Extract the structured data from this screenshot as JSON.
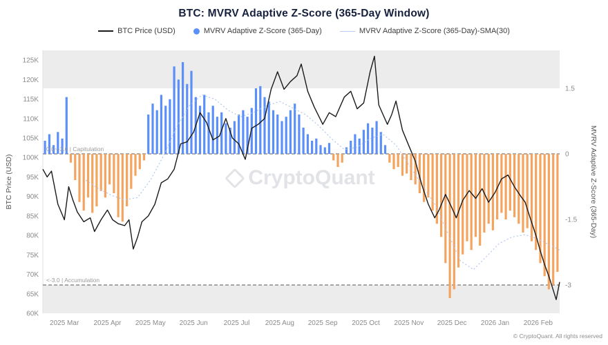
{
  "title": "BTC: MVRV Adaptive Z-Score (365-Day Window)",
  "legend": [
    {
      "label": "BTC Price (USD)",
      "swatch": "line-swatch-icon",
      "color": "#1a1a1a"
    },
    {
      "label": "MVRV Adaptive Z-Score (365-Day)",
      "swatch": "dot-swatch-icon",
      "color": "#5b8ff9"
    },
    {
      "label": "MVRV Adaptive Z-Score (365-Day)-SMA(30)",
      "swatch": "thin-line-swatch-icon",
      "color": "#b9cdf2"
    }
  ],
  "annotations": {
    "capitulation": "0.0~-3.0 | Capitulation",
    "accumulation": "<-3.0 | Accumulation"
  },
  "watermark": "CryptoQuant",
  "copyright": "© CryptoQuant. All rights reserved",
  "colors": {
    "bar_positive": "#5b8ff9",
    "bar_negative": "#f4a45e",
    "price_line": "#1a1a1a",
    "sma_line": "#aec6f0",
    "band": "#ececec",
    "ref_line": "#555555"
  },
  "chart_data": {
    "type": "mixed",
    "x_domain": [
      0,
      12
    ],
    "x_ticks": [
      {
        "t": 0.5,
        "label": "2025 Mar"
      },
      {
        "t": 1.5,
        "label": "2025 Apr"
      },
      {
        "t": 2.5,
        "label": "2025 May"
      },
      {
        "t": 3.5,
        "label": "2025 Jun"
      },
      {
        "t": 4.5,
        "label": "2025 Jul"
      },
      {
        "t": 5.5,
        "label": "2025 Aug"
      },
      {
        "t": 6.5,
        "label": "2025 Sep"
      },
      {
        "t": 7.5,
        "label": "2025 Oct"
      },
      {
        "t": 8.5,
        "label": "2025 Nov"
      },
      {
        "t": 9.5,
        "label": "2025 Dec"
      },
      {
        "t": 10.5,
        "label": "2026 Jan"
      },
      {
        "t": 11.5,
        "label": "2026 Feb"
      }
    ],
    "price_axis": {
      "label": "BTC Price (USD)",
      "unit": "K",
      "min": 60,
      "max": 127.5,
      "ticks": [
        60,
        65,
        70,
        75,
        80,
        85,
        90,
        95,
        100,
        105,
        110,
        115,
        120,
        125
      ]
    },
    "z_axis": {
      "label": "MVRV Adaptive Z-Score (365-Day)",
      "ticks": [
        1.5,
        0,
        -1.5,
        -3
      ],
      "band_top": 1.5,
      "capitulation_level": 0,
      "accumulation_level": -3
    },
    "series": [
      {
        "name": "BTC Price (USD)",
        "type": "line",
        "axis": "price",
        "color": "#1a1a1a",
        "points": [
          [
            0,
            97
          ],
          [
            0.1,
            95
          ],
          [
            0.2,
            96.5
          ],
          [
            0.35,
            88
          ],
          [
            0.5,
            84
          ],
          [
            0.6,
            92.5
          ],
          [
            0.7,
            89
          ],
          [
            0.8,
            86
          ],
          [
            0.95,
            83.5
          ],
          [
            1.1,
            84.5
          ],
          [
            1.2,
            81
          ],
          [
            1.35,
            84
          ],
          [
            1.5,
            86.5
          ],
          [
            1.62,
            84
          ],
          [
            1.75,
            83
          ],
          [
            1.9,
            82.5
          ],
          [
            2.0,
            84
          ],
          [
            2.1,
            76.5
          ],
          [
            2.2,
            79.5
          ],
          [
            2.3,
            83.5
          ],
          [
            2.45,
            85
          ],
          [
            2.6,
            88
          ],
          [
            2.75,
            93.5
          ],
          [
            2.9,
            94.5
          ],
          [
            3.05,
            97
          ],
          [
            3.2,
            103.5
          ],
          [
            3.35,
            104
          ],
          [
            3.5,
            106.5
          ],
          [
            3.65,
            111.5
          ],
          [
            3.8,
            109
          ],
          [
            3.95,
            104.5
          ],
          [
            4.1,
            105.5
          ],
          [
            4.25,
            110
          ],
          [
            4.4,
            105
          ],
          [
            4.55,
            103.5
          ],
          [
            4.7,
            99.5
          ],
          [
            4.85,
            107.5
          ],
          [
            5.0,
            108.5
          ],
          [
            5.15,
            110
          ],
          [
            5.3,
            117.5
          ],
          [
            5.45,
            122
          ],
          [
            5.6,
            117.5
          ],
          [
            5.75,
            119.5
          ],
          [
            5.9,
            121
          ],
          [
            6.0,
            124
          ],
          [
            6.15,
            117
          ],
          [
            6.3,
            113
          ],
          [
            6.5,
            108.5
          ],
          [
            6.65,
            111.5
          ],
          [
            6.8,
            110.5
          ],
          [
            7.0,
            115.5
          ],
          [
            7.15,
            117
          ],
          [
            7.3,
            112.5
          ],
          [
            7.45,
            114
          ],
          [
            7.6,
            122
          ],
          [
            7.7,
            126
          ],
          [
            7.8,
            113.5
          ],
          [
            7.9,
            111
          ],
          [
            8.0,
            108.5
          ],
          [
            8.1,
            111
          ],
          [
            8.2,
            114.5
          ],
          [
            8.35,
            107
          ],
          [
            8.5,
            103
          ],
          [
            8.65,
            99
          ],
          [
            8.8,
            93
          ],
          [
            8.95,
            88
          ],
          [
            9.1,
            84.5
          ],
          [
            9.2,
            86.5
          ],
          [
            9.35,
            90.5
          ],
          [
            9.5,
            87
          ],
          [
            9.6,
            84.5
          ],
          [
            9.75,
            89
          ],
          [
            9.9,
            91.5
          ],
          [
            10.05,
            89.5
          ],
          [
            10.2,
            92
          ],
          [
            10.35,
            88.5
          ],
          [
            10.5,
            91
          ],
          [
            10.65,
            94.5
          ],
          [
            10.8,
            95.5
          ],
          [
            10.95,
            92.5
          ],
          [
            11.1,
            90
          ],
          [
            11.2,
            88.5
          ],
          [
            11.3,
            85
          ],
          [
            11.45,
            80
          ],
          [
            11.55,
            76
          ],
          [
            11.65,
            72.5
          ],
          [
            11.75,
            69.5
          ],
          [
            11.85,
            66
          ],
          [
            11.92,
            63.5
          ],
          [
            12,
            68
          ]
        ]
      },
      {
        "name": "MVRV Adaptive Z-Score (365-Day)",
        "type": "bar",
        "axis": "z",
        "color_pos": "#5b8ff9",
        "color_neg": "#f4a45e",
        "t_start": 0,
        "t_step": 0.1,
        "values": [
          0.3,
          0.45,
          0.2,
          0.5,
          0.35,
          1.3,
          -0.2,
          -0.6,
          -1.1,
          -1.3,
          -1.0,
          -1.35,
          -1.2,
          -0.85,
          -1.0,
          -0.7,
          -0.9,
          -1.45,
          -1.55,
          -1.2,
          -0.8,
          -0.5,
          -0.35,
          -0.15,
          0.9,
          1.15,
          1.0,
          1.35,
          1.1,
          1.25,
          2.0,
          1.7,
          2.1,
          1.6,
          1.9,
          1.3,
          1.1,
          1.35,
          0.95,
          1.1,
          0.85,
          0.95,
          0.7,
          0.6,
          0.75,
          0.9,
          1.0,
          0.85,
          1.05,
          1.5,
          1.55,
          1.3,
          1.2,
          1.0,
          0.9,
          0.75,
          0.85,
          1.0,
          1.15,
          0.9,
          0.6,
          0.45,
          0.3,
          0.35,
          0.2,
          0.15,
          0.25,
          -0.15,
          -0.3,
          -0.2,
          0.15,
          0.3,
          0.45,
          0.35,
          0.55,
          0.7,
          0.6,
          0.75,
          0.5,
          0.2,
          -0.2,
          -0.35,
          -0.3,
          -0.5,
          -0.45,
          -0.6,
          -0.7,
          -0.9,
          -1.1,
          -1.0,
          -1.3,
          -1.6,
          -1.9,
          -2.5,
          -3.3,
          -3.1,
          -2.6,
          -2.3,
          -2.0,
          -2.2,
          -1.9,
          -2.1,
          -1.8,
          -1.6,
          -1.75,
          -1.5,
          -1.35,
          -1.5,
          -1.3,
          -1.45,
          -1.6,
          -1.8,
          -1.7,
          -2.0,
          -2.2,
          -2.5,
          -2.8,
          -3.1,
          -3.0,
          -2.7
        ]
      },
      {
        "name": "MVRV Adaptive Z-Score (365-Day)-SMA(30)",
        "type": "line",
        "axis": "z",
        "color": "#aec6f0",
        "dashed": true,
        "points": [
          [
            1.0,
            -0.6
          ],
          [
            1.3,
            -0.8
          ],
          [
            1.6,
            -0.95
          ],
          [
            1.9,
            -1.05
          ],
          [
            2.2,
            -1.0
          ],
          [
            2.5,
            -0.6
          ],
          [
            2.8,
            -0.05
          ],
          [
            3.1,
            0.6
          ],
          [
            3.4,
            1.1
          ],
          [
            3.7,
            1.35
          ],
          [
            4.0,
            1.25
          ],
          [
            4.3,
            1.0
          ],
          [
            4.6,
            0.85
          ],
          [
            4.9,
            0.95
          ],
          [
            5.2,
            1.1
          ],
          [
            5.5,
            1.2
          ],
          [
            5.8,
            1.05
          ],
          [
            6.1,
            0.9
          ],
          [
            6.4,
            0.65
          ],
          [
            6.7,
            0.35
          ],
          [
            7.0,
            0.1
          ],
          [
            7.3,
            0.15
          ],
          [
            7.6,
            0.35
          ],
          [
            7.9,
            0.45
          ],
          [
            8.2,
            0.2
          ],
          [
            8.5,
            -0.25
          ],
          [
            8.8,
            -0.7
          ],
          [
            9.1,
            -1.15
          ],
          [
            9.4,
            -1.8
          ],
          [
            9.7,
            -2.45
          ],
          [
            10.0,
            -2.65
          ],
          [
            10.3,
            -2.35
          ],
          [
            10.6,
            -2.05
          ],
          [
            10.9,
            -1.9
          ],
          [
            11.2,
            -1.85
          ],
          [
            11.5,
            -1.95
          ],
          [
            11.8,
            -2.1
          ],
          [
            12.0,
            -2.2
          ]
        ]
      }
    ]
  }
}
